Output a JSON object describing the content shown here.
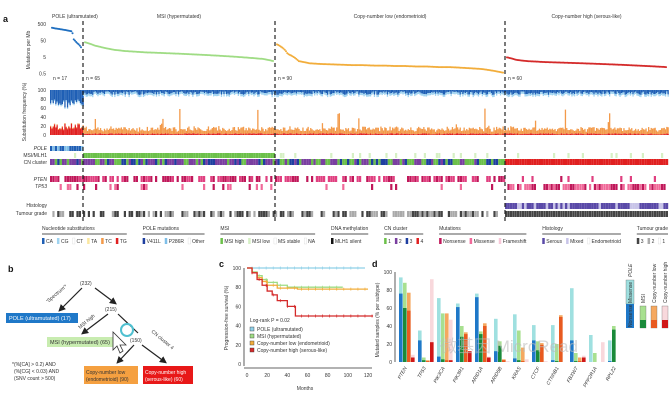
{
  "panel_labels": [
    "a",
    "b",
    "c",
    "d"
  ],
  "panel_a": {
    "groups": [
      {
        "name": "POLE (ultramutated)",
        "n_label": "n = 17",
        "color": "#1f6fc0",
        "mutations_per_mb": [
          300,
          280,
          270,
          260,
          250,
          240,
          230,
          220,
          210,
          200,
          190,
          180,
          60,
          45,
          35,
          28,
          20
        ]
      },
      {
        "name": "MSI (hypermutated)",
        "n_label": "n = 65",
        "color": "#9fdc84",
        "mutations_per_mb": [
          40,
          25,
          18,
          14,
          12,
          11,
          10,
          9.5,
          9,
          8.5,
          8,
          7.5,
          7,
          6.5,
          6,
          5.5,
          5,
          4.5,
          4,
          3
        ]
      },
      {
        "name": "Copy-number low (endometrioid)",
        "n_label": "n = 90",
        "color": "#f2ad3b",
        "mutations_per_mb": [
          30,
          8,
          3,
          2.2,
          2,
          1.9,
          1.8,
          1.7,
          1.7,
          1.6,
          1.6,
          1.5,
          1.5,
          1.4,
          1.4,
          1.3,
          1.3,
          1.2,
          1.1,
          1,
          0.8,
          0.6
        ]
      },
      {
        "name": "Copy-number high (serous-like)",
        "n_label": "n = 60",
        "color": "#d42a2a",
        "mutations_per_mb": [
          5,
          3.5,
          3,
          2.8,
          2.6,
          2.5,
          2.4,
          2.3,
          2.2,
          2.1,
          2,
          1.9,
          1.8,
          1.7,
          1.6,
          1.5,
          1.4,
          1.3
        ]
      }
    ],
    "mut_ylabel": "Mutations per Mb",
    "mut_ticks": [
      "500",
      "50",
      "5",
      "0.5"
    ],
    "sub_ylabel": "Substitution frequency (%)",
    "sub_ticks": [
      "100",
      "80",
      "60",
      "40",
      "20",
      "0"
    ],
    "tracks": [
      "POLE",
      "MSI/MLH1",
      "CN cluster",
      "PTEN",
      "TP53",
      "Histology",
      "Tumour grade"
    ],
    "legends": [
      {
        "title": "Nucleotide substitutions",
        "items": [
          {
            "label": "CA",
            "color": "#1f5fb5"
          },
          {
            "label": "CG",
            "color": "#9fd3f0"
          },
          {
            "label": "CT",
            "color": "#ffffff"
          },
          {
            "label": "TA",
            "color": "#fbe8a0"
          },
          {
            "label": "TC",
            "color": "#f39a4a"
          },
          {
            "label": "TG",
            "color": "#e02020"
          }
        ]
      },
      {
        "title": "POLE mutations",
        "items": [
          {
            "label": "V411L",
            "color": "#1f3fa0"
          },
          {
            "label": "P286R",
            "color": "#7fbfe8"
          },
          {
            "label": "Other",
            "color": "#ffffff"
          }
        ]
      },
      {
        "title": "MSI",
        "items": [
          {
            "label": "MSI high",
            "color": "#6cc04a"
          },
          {
            "label": "MSI low",
            "color": "#d6f0c4"
          },
          {
            "label": "MS stable",
            "color": "#ffffff"
          },
          {
            "label": "NA",
            "color": "#ffffff"
          }
        ]
      },
      {
        "title": "DNA methylation",
        "items": [
          {
            "label": "MLH1 silent",
            "color": "#111111"
          }
        ]
      },
      {
        "title": "CN cluster",
        "items": [
          {
            "label": "1",
            "color": "#6cc04a"
          },
          {
            "label": "2",
            "color": "#7a3fa0"
          },
          {
            "label": "3",
            "color": "#1f3fa0"
          },
          {
            "label": "4",
            "color": "#e02020"
          }
        ]
      },
      {
        "title": "Mutations",
        "items": [
          {
            "label": "Nonsense",
            "color": "#c0185a"
          },
          {
            "label": "Missense",
            "color": "#f06a9a"
          },
          {
            "label": "Frameshift",
            "color": "#f8c8d8"
          }
        ]
      },
      {
        "title": "Histology",
        "items": [
          {
            "label": "Serous",
            "color": "#5a4aa8"
          },
          {
            "label": "Mixed",
            "color": "#c8c4e8"
          },
          {
            "label": "Endometrioid",
            "color": "#ffffff"
          }
        ]
      },
      {
        "title": "Tumour grade",
        "items": [
          {
            "label": "3",
            "color": "#444444"
          },
          {
            "label": "2",
            "color": "#aaaaaa"
          },
          {
            "label": "1",
            "color": "#ffffff"
          }
        ]
      }
    ]
  },
  "panel_b": {
    "root": "(232)",
    "edge1": "'Spectrum'*",
    "pole": "POLE (ultramutated) (17)",
    "node2": "(215)",
    "edge2": "MSI high",
    "msi": "MSI (hypermutated) (65)",
    "node3": "(150)",
    "edge3": "CN cluster 4",
    "cnlow": [
      "Copy-number low",
      "(endometrioid) (90)"
    ],
    "cnhigh": [
      "Copy-number high",
      "(serous-like) (60)"
    ],
    "footnote": [
      "*(%[CA] > 0.2) AND",
      "(%[CG] < 0.03) AND",
      "(SNV count > 500)"
    ]
  },
  "chart_data": [
    {
      "type": "line",
      "panel": "c",
      "title": "",
      "xlabel": "Months",
      "ylabel": "Progression-free survival (%)",
      "xlim": [
        0,
        125
      ],
      "ylim": [
        0,
        100
      ],
      "x_ticks": [
        "0",
        "20",
        "40",
        "60",
        "80",
        "100",
        "120"
      ],
      "y_ticks": [
        "0",
        "20",
        "40",
        "60",
        "80",
        "100"
      ],
      "annotation": "Log-rank P = 0.02",
      "legend": "bottom-left",
      "series": [
        {
          "name": "POLE (ultramutated)",
          "color": "#8fd0e8",
          "x": [
            0,
            117
          ],
          "y": [
            100,
            100
          ]
        },
        {
          "name": "MSI (hypermutated)",
          "color": "#9fdc84",
          "x": [
            0,
            5,
            10,
            15,
            20,
            30,
            40,
            60,
            80,
            95
          ],
          "y": [
            100,
            96,
            92,
            88,
            85,
            82,
            80,
            80,
            80,
            80
          ]
        },
        {
          "name": "Copy-number low (endometrioid)",
          "color": "#f2ad3b",
          "x": [
            0,
            5,
            10,
            15,
            20,
            30,
            50,
            80,
            120
          ],
          "y": [
            100,
            95,
            90,
            86,
            82,
            79,
            78,
            78,
            78
          ]
        },
        {
          "name": "Copy-number high (serous-like)",
          "color": "#d42a2a",
          "x": [
            0,
            5,
            10,
            15,
            20,
            25,
            30,
            40,
            48,
            60,
            100,
            125
          ],
          "y": [
            100,
            95,
            88,
            82,
            76,
            72,
            66,
            60,
            50,
            50,
            50,
            50
          ]
        }
      ]
    },
    {
      "type": "bar",
      "panel": "d",
      "title": "",
      "xlabel": "",
      "ylabel": "Mutated samples (% per subtype)",
      "ylim": [
        0,
        100
      ],
      "y_ticks": [
        "0",
        "20",
        "40",
        "60",
        "80",
        "100"
      ],
      "categories": [
        "PTEN",
        "TP53",
        "PIK3CA",
        "PIK3R1",
        "ARID1A",
        "ARID5B",
        "KRAS",
        "CTCF",
        "CTNNB1",
        "FBXW7",
        "PPP2R1A",
        "RPL22"
      ],
      "series": [
        {
          "name": "POLE",
          "color": "#1f78c8",
          "light": "#9fe0e0",
          "total": [
            94,
            35,
            71,
            65,
            76,
            48,
            53,
            41,
            41,
            82,
            30,
            24
          ],
          "truncating": [
            76,
            24,
            6,
            61,
            72,
            12,
            4,
            24,
            2,
            24,
            0,
            1
          ]
        },
        {
          "name": "MSI",
          "color": "#1a8a3a",
          "light": "#a8e090",
          "total": [
            88,
            5,
            54,
            40,
            34,
            23,
            35,
            23,
            20,
            10,
            10,
            40
          ],
          "truncating": [
            60,
            2,
            3,
            28,
            31,
            18,
            2,
            13,
            1,
            1,
            0,
            36
          ]
        },
        {
          "name": "Copy-number low",
          "color": "#e85a20",
          "light": "#f5a860",
          "total": [
            77,
            2,
            54,
            33,
            43,
            3,
            16,
            21,
            52,
            5,
            0,
            0
          ],
          "truncating": [
            57,
            1,
            2,
            31,
            40,
            2,
            1,
            19,
            50,
            1,
            0,
            0
          ]
        },
        {
          "name": "Copy-number high",
          "color": "#d01818",
          "light": "#f8d8dc",
          "total": [
            8,
            92,
            47,
            12,
            6,
            1,
            3,
            1,
            0,
            7,
            22,
            0
          ],
          "truncating": [
            5,
            22,
            2,
            12,
            5,
            0,
            0,
            0,
            0,
            5,
            0,
            0
          ]
        }
      ],
      "legend": "right",
      "legend_labels": [
        "Nonsense",
        "Missense",
        "POLE",
        "MSI",
        "Copy-number low",
        "Copy-number high"
      ]
    }
  ],
  "watermark": "微基因 MicroRead"
}
